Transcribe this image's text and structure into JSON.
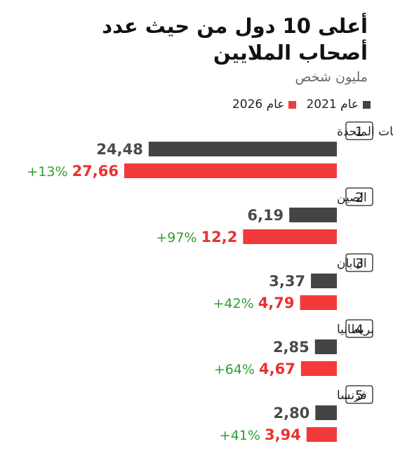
{
  "chart_data": {
    "type": "bar",
    "orientation": "horizontal",
    "title": "أعلى 10 دول من حيث عدد أصحاب الملايين",
    "subtitle": "مليون شخص",
    "legend_placement": "top-right",
    "xlim": [
      0,
      27.66
    ],
    "series": [
      {
        "name": "عام 2021",
        "color": "#444444"
      },
      {
        "name": "عام 2026",
        "color": "#f23a3a"
      }
    ],
    "categories": [
      {
        "rank": "1",
        "name": "الولايات المتحدة",
        "v2021": 24.48,
        "v2021_label": "24,48",
        "v2026": 27.66,
        "v2026_label": "27,66",
        "growth": "+13%"
      },
      {
        "rank": "2",
        "name": "الصين",
        "v2021": 6.19,
        "v2021_label": "6,19",
        "v2026": 12.2,
        "v2026_label": "12,2",
        "growth": "+97%"
      },
      {
        "rank": "3",
        "name": "اليابان",
        "v2021": 3.37,
        "v2021_label": "3,37",
        "v2026": 4.79,
        "v2026_label": "4,79",
        "growth": "+42%"
      },
      {
        "rank": "4",
        "name": "بريطانيا",
        "v2021": 2.85,
        "v2021_label": "2,85",
        "v2026": 4.67,
        "v2026_label": "4,67",
        "growth": "+64%"
      },
      {
        "rank": "5",
        "name": "فرنسا",
        "v2021": 2.8,
        "v2021_label": "2,80",
        "v2026": 3.94,
        "v2026_label": "3,94",
        "growth": "+41%"
      }
    ],
    "colors": {
      "bar_2021": "#444444",
      "bar_2026": "#f23a3a",
      "value_2021_text": "#4a4a4a",
      "value_2026_text": "#e8322f",
      "growth_text": "#2f9e2f"
    }
  }
}
